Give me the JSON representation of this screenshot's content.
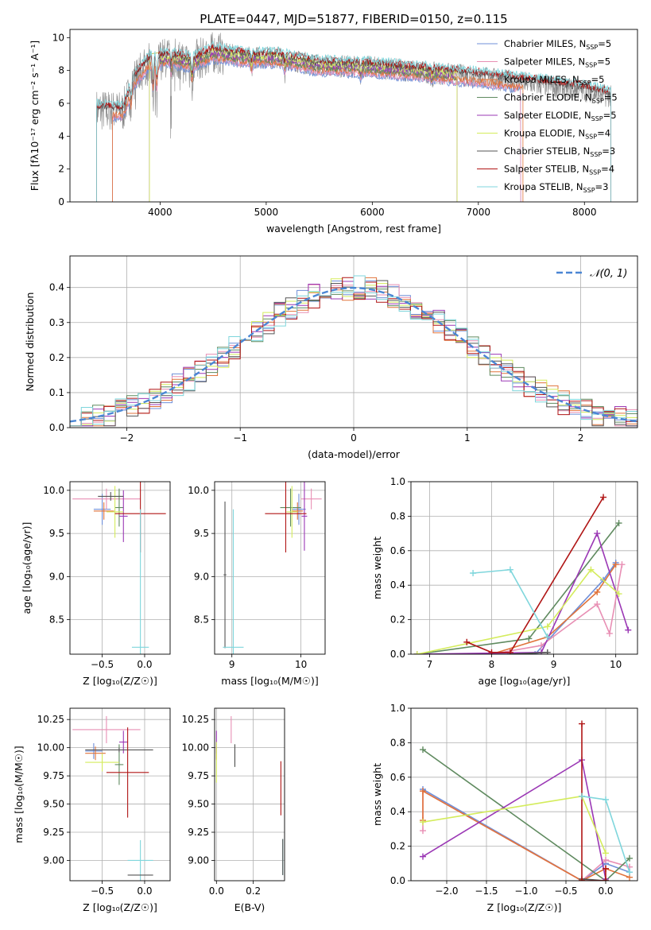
{
  "figure_title": "PLATE=0447, MJD=51877, FIBERID=0150, z=0.115",
  "colors": {
    "Chabrier MILES": "#6f8fd8",
    "Salpeter MILES": "#e88fb4",
    "Kroupa MILES": "#e0733b",
    "Chabrier ELODIE": "#5f8a5f",
    "Salpeter ELODIE": "#9b38b5",
    "Kroupa ELODIE": "#d4ec5c",
    "Chabrier STELIB": "#555555",
    "Salpeter STELIB": "#b01515",
    "Kroupa STELIB": "#7fd6dc"
  },
  "chart_data": [
    {
      "id": "spectrum",
      "type": "line",
      "title": "",
      "xlabel": "wavelength [Angstrom, rest frame]",
      "ylabel": "Flux [fλ10⁻¹⁷ erg cm⁻² s⁻¹ A⁻¹]",
      "xlim": [
        3150,
        8500
      ],
      "ylim": [
        0,
        10.5
      ],
      "xticks": [
        4000,
        5000,
        6000,
        7000,
        8000
      ],
      "yticks": [
        0,
        2,
        4,
        6,
        8,
        10
      ],
      "legend_position": "top-right",
      "grid": false,
      "data_spectrum": {
        "name": "data",
        "color": "#888888"
      },
      "series": [
        {
          "name": "Chabrier MILES",
          "label": "Chabrier MILES, N",
          "sub": "SSP",
          "n": "=5",
          "color": "#6f8fd8",
          "x_range": [
            3550,
            7400
          ]
        },
        {
          "name": "Salpeter MILES",
          "label": "Salpeter MILES, N",
          "sub": "SSP",
          "n": "=5",
          "color": "#e88fb4",
          "x_range": [
            3550,
            7400
          ]
        },
        {
          "name": "Kroupa MILES",
          "label": "Kroupa MILES, N",
          "sub": "SSP",
          "n": "=5",
          "color": "#e0733b",
          "x_range": [
            3550,
            7420
          ]
        },
        {
          "name": "Chabrier ELODIE",
          "label": "Chabrier ELODIE, N",
          "sub": "SSP",
          "n": "=5",
          "color": "#5f8a5f",
          "x_range": [
            3900,
            6800
          ]
        },
        {
          "name": "Salpeter ELODIE",
          "label": "Salpeter ELODIE, N",
          "sub": "SSP",
          "n": "=5",
          "color": "#9b38b5",
          "x_range": [
            3900,
            6800
          ]
        },
        {
          "name": "Kroupa ELODIE",
          "label": "Kroupa ELODIE, N",
          "sub": "SSP",
          "n": "=4",
          "color": "#d4ec5c",
          "x_range": [
            3900,
            6800
          ]
        },
        {
          "name": "Chabrier STELIB",
          "label": "Chabrier STELIB, N",
          "sub": "SSP",
          "n": "=3",
          "color": "#555555",
          "x_range": [
            3400,
            8250
          ]
        },
        {
          "name": "Salpeter STELIB",
          "label": "Salpeter STELIB, N",
          "sub": "SSP",
          "n": "=4",
          "color": "#b01515",
          "x_range": [
            3400,
            8250
          ]
        },
        {
          "name": "Kroupa STELIB",
          "label": "Kroupa STELIB, N",
          "sub": "SSP",
          "n": "=3",
          "color": "#7fd6dc",
          "x_range": [
            3400,
            8250
          ]
        }
      ],
      "model_shape": [
        [
          3400,
          5.6
        ],
        [
          3650,
          5.5
        ],
        [
          3750,
          7.4
        ],
        [
          3900,
          8.6
        ],
        [
          4100,
          8.8
        ],
        [
          4300,
          8.5
        ],
        [
          4500,
          9.1
        ],
        [
          4800,
          8.8
        ],
        [
          5100,
          8.8
        ],
        [
          5500,
          8.3
        ],
        [
          6000,
          8.2
        ],
        [
          6500,
          7.9
        ],
        [
          7000,
          7.6
        ],
        [
          7500,
          7.2
        ],
        [
          8000,
          6.8
        ],
        [
          8250,
          6.4
        ]
      ]
    },
    {
      "id": "residuals",
      "type": "histogram",
      "title": "",
      "xlabel": "(data-model)/error",
      "ylabel": "Normed distribution",
      "xlim": [
        -2.5,
        2.5
      ],
      "ylim": [
        0,
        0.49
      ],
      "xticks": [
        -2,
        -1,
        0,
        1,
        2
      ],
      "yticks": [
        0.0,
        0.1,
        0.2,
        0.3,
        0.4
      ],
      "grid": true,
      "bin_width": 0.1,
      "legend": {
        "label": "𝒩(0, 1)",
        "position": "top-right",
        "color": "#4a86d4"
      },
      "series_order": [
        "Chabrier MILES",
        "Salpeter MILES",
        "Kroupa MILES",
        "Chabrier ELODIE",
        "Salpeter ELODIE",
        "Kroupa ELODIE",
        "Chabrier STELIB",
        "Salpeter STELIB",
        "Kroupa STELIB"
      ]
    },
    {
      "id": "age-vs-Z",
      "type": "errorbar",
      "xlabel": "Z [log₁₀(Z/Z☉)]",
      "ylabel": "age  [log₁₀(age/yr)]",
      "xlim": [
        -0.88,
        0.3
      ],
      "ylim": [
        8.1,
        10.1
      ],
      "xticks": [
        -0.5,
        0.0
      ],
      "yticks": [
        8.5,
        9.0,
        9.5,
        10.0
      ],
      "grid": true,
      "points": [
        {
          "series": "Chabrier MILES",
          "x": -0.5,
          "xerr": 0.1,
          "y": 9.78,
          "yerr": 0.18
        },
        {
          "series": "Salpeter MILES",
          "x": -0.45,
          "xerr": 0.4,
          "y": 9.9,
          "yerr": 0.12
        },
        {
          "series": "Kroupa MILES",
          "x": -0.48,
          "xerr": 0.12,
          "y": 9.76,
          "yerr": 0.1
        },
        {
          "series": "Chabrier ELODIE",
          "x": -0.3,
          "xerr": 0.05,
          "y": 9.8,
          "yerr": 0.22
        },
        {
          "series": "Salpeter ELODIE",
          "x": -0.25,
          "xerr": 0.05,
          "y": 9.7,
          "yerr": 0.3
        },
        {
          "series": "Kroupa ELODIE",
          "x": -0.35,
          "xerr": 0.1,
          "y": 9.75,
          "yerr": 0.3
        },
        {
          "series": "Chabrier STELIB",
          "x": -0.4,
          "xerr": 0.15,
          "y": 9.93,
          "yerr": 0.05
        },
        {
          "series": "Salpeter STELIB",
          "x": -0.05,
          "xerr": 0.3,
          "y": 9.73,
          "yerr": 0.45
        },
        {
          "series": "Kroupa STELIB",
          "x": -0.05,
          "xerr": 0.1,
          "y": 8.18,
          "yerr": 1.6
        }
      ]
    },
    {
      "id": "age-vs-mass",
      "type": "errorbar",
      "xlabel": "mass [log₁₀(M/M☉)]",
      "xlim": [
        8.75,
        10.35
      ],
      "ylim": [
        8.1,
        10.1
      ],
      "xticks": [
        9,
        10
      ],
      "yticks": [
        8.5,
        9.0,
        9.5,
        10.0
      ],
      "grid": true,
      "points": [
        {
          "series": "Chabrier MILES",
          "x": 9.97,
          "xerr": 0.1,
          "y": 9.78,
          "yerr": 0.18
        },
        {
          "series": "Salpeter MILES",
          "x": 10.15,
          "xerr": 0.15,
          "y": 9.9,
          "yerr": 0.12
        },
        {
          "series": "Kroupa MILES",
          "x": 9.95,
          "xerr": 0.08,
          "y": 9.76,
          "yerr": 0.1
        },
        {
          "series": "Chabrier ELODIE",
          "x": 9.85,
          "xerr": 0.15,
          "y": 9.8,
          "yerr": 0.22
        },
        {
          "series": "Salpeter ELODIE",
          "x": 10.05,
          "xerr": 0.04,
          "y": 9.7,
          "yerr": 0.4
        },
        {
          "series": "Kroupa ELODIE",
          "x": 9.87,
          "xerr": 0.08,
          "y": 9.75,
          "yerr": 0.3
        },
        {
          "series": "Chabrier STELIB",
          "x": 8.9,
          "xerr": 0.02,
          "y": 9.02,
          "yerr": 0.85
        },
        {
          "series": "Salpeter STELIB",
          "x": 9.78,
          "xerr": 0.3,
          "y": 9.73,
          "yerr": 0.45
        },
        {
          "series": "Kroupa STELIB",
          "x": 9.02,
          "xerr": 0.15,
          "y": 8.18,
          "yerr": 1.6
        }
      ]
    },
    {
      "id": "mass-weight-vs-age",
      "type": "line",
      "xlabel": "age  [log₁₀(age/yr)]",
      "ylabel": "mass weight",
      "xlim": [
        6.7,
        10.35
      ],
      "ylim": [
        0,
        1
      ],
      "xticks": [
        7,
        8,
        9,
        10
      ],
      "yticks": [
        0.0,
        0.2,
        0.4,
        0.6,
        0.8,
        1.0
      ],
      "grid": true,
      "series": [
        {
          "name": "Chabrier MILES",
          "x": [
            8.0,
            8.7,
            9.8,
            10.0
          ],
          "y": [
            0.0,
            0.0,
            0.43,
            0.53
          ]
        },
        {
          "name": "Salpeter MILES",
          "x": [
            8.0,
            8.8,
            9.7,
            9.9,
            10.1
          ],
          "y": [
            0.0,
            0.05,
            0.29,
            0.12,
            0.52
          ]
        },
        {
          "name": "Kroupa MILES",
          "x": [
            8.0,
            8.9,
            9.7,
            10.0
          ],
          "y": [
            0.0,
            0.1,
            0.36,
            0.52
          ]
        },
        {
          "name": "Chabrier ELODIE",
          "x": [
            6.8,
            8.6,
            10.05
          ],
          "y": [
            0.0,
            0.09,
            0.76
          ]
        },
        {
          "name": "Salpeter ELODIE",
          "x": [
            6.8,
            8.8,
            9.7,
            10.2
          ],
          "y": [
            0.0,
            0.01,
            0.7,
            0.14
          ]
        },
        {
          "name": "Kroupa ELODIE",
          "x": [
            6.8,
            8.9,
            9.6,
            10.05
          ],
          "y": [
            0.0,
            0.16,
            0.49,
            0.35
          ]
        },
        {
          "name": "Chabrier STELIB",
          "x": [
            8.3,
            8.9
          ],
          "y": [
            0.0,
            0.01
          ]
        },
        {
          "name": "Salpeter STELIB",
          "x": [
            7.6,
            8.0,
            8.3,
            9.8
          ],
          "y": [
            0.07,
            0.01,
            0.01,
            0.91
          ]
        },
        {
          "name": "Kroupa STELIB",
          "x": [
            7.7,
            8.3,
            8.9
          ],
          "y": [
            0.47,
            0.49,
            0.1
          ]
        }
      ]
    },
    {
      "id": "mass-vs-Z",
      "type": "errorbar",
      "xlabel": "Z [log₁₀(Z/Z☉)]",
      "ylabel": "mass [log₁₀(M/M☉)]",
      "xlim": [
        -0.88,
        0.3
      ],
      "ylim": [
        8.82,
        10.35
      ],
      "xticks": [
        -0.5,
        0.0
      ],
      "yticks": [
        9.0,
        9.25,
        9.5,
        9.75,
        10.0,
        10.25
      ],
      "grid": true,
      "points": [
        {
          "series": "Chabrier MILES",
          "x": -0.6,
          "xerr": 0.1,
          "y": 9.97,
          "yerr": 0.07
        },
        {
          "series": "Salpeter MILES",
          "x": -0.45,
          "xerr": 0.4,
          "y": 10.16,
          "yerr": 0.12
        },
        {
          "series": "Kroupa MILES",
          "x": -0.58,
          "xerr": 0.12,
          "y": 9.95,
          "yerr": 0.06
        },
        {
          "series": "Chabrier ELODIE",
          "x": -0.3,
          "xerr": 0.05,
          "y": 9.85,
          "yerr": 0.18
        },
        {
          "series": "Salpeter ELODIE",
          "x": -0.25,
          "xerr": 0.05,
          "y": 10.05,
          "yerr": 0.1
        },
        {
          "series": "Kroupa ELODIE",
          "x": -0.5,
          "xerr": 0.2,
          "y": 9.87,
          "yerr": 0.08
        },
        {
          "series": "Chabrier STELIB",
          "x": -0.3,
          "xerr": 0.4,
          "y": 9.98,
          "yerr": 0.02
        },
        {
          "series": "Salpeter STELIB",
          "x": -0.2,
          "xerr": 0.25,
          "y": 9.78,
          "yerr": 0.4
        },
        {
          "series": "Kroupa STELIB",
          "x": -0.05,
          "xerr": 0.15,
          "y": 9.0,
          "yerr": 0.18
        },
        {
          "series": "Chabrier STELIB",
          "x": -0.05,
          "xerr": 0.15,
          "y": 8.87,
          "yerr": 0.0
        }
      ]
    },
    {
      "id": "mass-vs-EBV",
      "type": "errorbar",
      "xlabel": "E(B-V)",
      "xlim": [
        -0.01,
        0.37
      ],
      "ylim": [
        8.82,
        10.35
      ],
      "xticks": [
        0.0,
        0.2
      ],
      "yticks": [
        9.0,
        9.25,
        9.5,
        9.75,
        10.0,
        10.25
      ],
      "grid": true,
      "points": [
        {
          "series": "Chabrier MILES",
          "x": 0.0,
          "xerr": 0,
          "y": 9.97,
          "yerr": 0.07
        },
        {
          "series": "Salpeter MILES",
          "x": 0.08,
          "xerr": 0,
          "y": 10.16,
          "yerr": 0.12
        },
        {
          "series": "Kroupa MILES",
          "x": 0.0,
          "xerr": 0,
          "y": 9.95,
          "yerr": 0.06
        },
        {
          "series": "Chabrier ELODIE",
          "x": 0.1,
          "xerr": 0,
          "y": 9.93,
          "yerr": 0.1
        },
        {
          "series": "Salpeter ELODIE",
          "x": 0.0,
          "xerr": 0,
          "y": 10.05,
          "yerr": 0.1
        },
        {
          "series": "Kroupa ELODIE",
          "x": 0.0,
          "xerr": 0,
          "y": 9.87,
          "yerr": 0.18
        },
        {
          "series": "Chabrier STELIB",
          "x": 0.1,
          "xerr": 0,
          "y": 9.93,
          "yerr": 0.1
        },
        {
          "series": "Salpeter STELIB",
          "x": 0.35,
          "xerr": 0,
          "y": 9.64,
          "yerr": 0.24
        },
        {
          "series": "Kroupa STELIB",
          "x": 0.36,
          "xerr": 0,
          "y": 9.03,
          "yerr": 0.16
        },
        {
          "series": "Chabrier STELIB",
          "x": 0.36,
          "xerr": 0,
          "y": 9.03,
          "yerr": 0.16
        }
      ]
    },
    {
      "id": "mass-weight-vs-Z",
      "type": "line",
      "xlabel": "Z [log₁₀(Z/Z☉)]",
      "ylabel": "mass weight",
      "xlim": [
        -2.45,
        0.4
      ],
      "ylim": [
        0,
        1
      ],
      "xticks": [
        -2.0,
        -1.5,
        -1.0,
        -0.5,
        0.0
      ],
      "yticks": [
        0.0,
        0.2,
        0.4,
        0.6,
        0.8,
        1.0
      ],
      "grid": true,
      "series": [
        {
          "name": "Chabrier MILES",
          "x": [
            -2.3,
            -0.3,
            0.0,
            0.3
          ],
          "y": [
            0.53,
            0.0,
            0.1,
            0.05
          ]
        },
        {
          "name": "Salpeter MILES",
          "x": [
            -2.3,
            -2.3,
            -0.3,
            0.0,
            0.3
          ],
          "y": [
            0.29,
            0.52,
            0.0,
            0.12,
            0.08
          ]
        },
        {
          "name": "Kroupa MILES",
          "x": [
            -2.3,
            -2.3,
            -0.3,
            0.0,
            0.3
          ],
          "y": [
            0.35,
            0.52,
            0.0,
            0.07,
            0.02
          ]
        },
        {
          "name": "Chabrier ELODIE",
          "x": [
            -2.3,
            0.0,
            0.3
          ],
          "y": [
            0.76,
            0.0,
            0.13
          ]
        },
        {
          "name": "Salpeter ELODIE",
          "x": [
            -2.3,
            -0.3,
            0.0
          ],
          "y": [
            0.14,
            0.7,
            0.01
          ]
        },
        {
          "name": "Kroupa ELODIE",
          "x": [
            -2.3,
            -0.3,
            0.0
          ],
          "y": [
            0.34,
            0.49,
            0.16
          ]
        },
        {
          "name": "Chabrier STELIB",
          "x": [
            -0.3,
            0.0
          ],
          "y": [
            0.01,
            0.0
          ]
        },
        {
          "name": "Salpeter STELIB",
          "x": [
            -0.3,
            -0.3,
            0.0,
            0.0
          ],
          "y": [
            0.91,
            0.0,
            0.0,
            0.07
          ]
        },
        {
          "name": "Kroupa STELIB",
          "x": [
            -0.3,
            0.0,
            0.3
          ],
          "y": [
            0.49,
            0.47,
            0.05
          ]
        }
      ]
    }
  ]
}
